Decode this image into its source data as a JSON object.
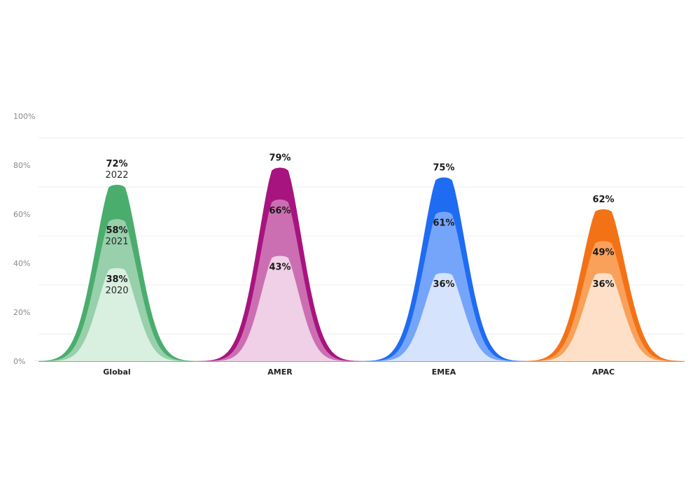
{
  "chart_data": {
    "type": "area",
    "categories": [
      "Global",
      "AMER",
      "EMEA",
      "APAC"
    ],
    "yticks": [
      "0%",
      "20%",
      "40%",
      "60%",
      "80%",
      "100%"
    ],
    "ylim": [
      0,
      100
    ],
    "grid": true,
    "series": [
      {
        "name": "2020",
        "values": [
          38,
          43,
          36,
          36
        ]
      },
      {
        "name": "2021",
        "values": [
          58,
          66,
          61,
          49
        ]
      },
      {
        "name": "2022",
        "values": [
          72,
          79,
          75,
          62
        ]
      }
    ],
    "value_labels": {
      "2020": [
        "38%",
        "43%",
        "36%",
        "36%"
      ],
      "2021": [
        "58%",
        "66%",
        "61%",
        "49%"
      ],
      "2022": [
        "72%",
        "79%",
        "75%",
        "62%"
      ]
    },
    "year_labels_on": "Global",
    "colors": {
      "Global": [
        "#d9efe0",
        "#97d0ab",
        "#4aad6e"
      ],
      "AMER": [
        "#efd0e6",
        "#cc6fb2",
        "#a8147f"
      ],
      "EMEA": [
        "#d6e3fd",
        "#75a5fb",
        "#1f6cf2"
      ],
      "APAC": [
        "#fde0c7",
        "#f9a15a",
        "#f37216"
      ]
    }
  }
}
